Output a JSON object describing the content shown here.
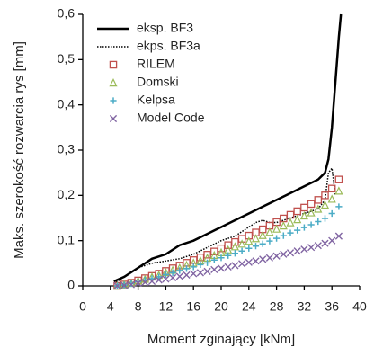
{
  "chart_data": {
    "type": "line",
    "x_label": "Moment zginający [kNm]",
    "y_label": "Maks. szerokość rozwarcia rys [mm]",
    "xlim": [
      0,
      40
    ],
    "xticks": [
      0,
      4,
      8,
      12,
      16,
      20,
      24,
      28,
      32,
      36,
      40
    ],
    "ylim": [
      0,
      0.6
    ],
    "yticks": [
      0,
      {
        "value": 0.1,
        "label": "0,1"
      },
      {
        "value": 0.2,
        "label": "0,2"
      },
      {
        "value": 0.3,
        "label": "0,3"
      },
      {
        "value": 0.4,
        "label": "0,4"
      },
      {
        "value": 0.5,
        "label": "0,5"
      },
      {
        "value": 0.6,
        "label": "0,6"
      }
    ],
    "grid": false,
    "legend": "upper left",
    "series": [
      {
        "name": "eksp. BF3",
        "color": "#000000",
        "style": "solid",
        "x": [
          4.5,
          6,
          8,
          10,
          12,
          14,
          16,
          18,
          20,
          22,
          24,
          26,
          28,
          30,
          32,
          34,
          35,
          35.5,
          36,
          36.5,
          37,
          37.3
        ],
        "values": [
          0.01,
          0.02,
          0.04,
          0.06,
          0.07,
          0.09,
          0.1,
          0.115,
          0.13,
          0.145,
          0.16,
          0.175,
          0.19,
          0.205,
          0.22,
          0.235,
          0.25,
          0.28,
          0.35,
          0.45,
          0.55,
          0.6
        ]
      },
      {
        "name": "ekps. BF3a",
        "color": "#000000",
        "style": "dotted",
        "x": [
          4.5,
          6,
          8,
          10,
          12,
          14,
          16,
          18,
          20,
          22,
          24,
          25,
          26,
          27,
          28,
          30,
          32,
          34,
          35,
          35.5,
          36,
          36.5
        ],
        "values": [
          0.005,
          0.02,
          0.04,
          0.05,
          0.055,
          0.06,
          0.07,
          0.085,
          0.1,
          0.11,
          0.13,
          0.14,
          0.145,
          0.14,
          0.14,
          0.15,
          0.16,
          0.17,
          0.19,
          0.25,
          0.26,
          0.2
        ]
      },
      {
        "name": "RILEM",
        "color": "#c0504d",
        "style": "marker",
        "marker": "square",
        "x": [
          5,
          6,
          7,
          8,
          9,
          10,
          11,
          12,
          13,
          14,
          15,
          16,
          17,
          18,
          19,
          20,
          21,
          22,
          23,
          24,
          25,
          26,
          27,
          28,
          29,
          30,
          31,
          32,
          33,
          34,
          35,
          36,
          37
        ],
        "values": [
          0,
          0.003,
          0.007,
          0.012,
          0.017,
          0.022,
          0.027,
          0.033,
          0.039,
          0.045,
          0.051,
          0.057,
          0.063,
          0.069,
          0.076,
          0.083,
          0.09,
          0.097,
          0.104,
          0.111,
          0.118,
          0.125,
          0.133,
          0.141,
          0.149,
          0.157,
          0.165,
          0.173,
          0.181,
          0.19,
          0.2,
          0.215,
          0.235
        ]
      },
      {
        "name": "Domski",
        "color": "#9bbb59",
        "style": "marker",
        "marker": "triangle",
        "x": [
          5,
          6,
          7,
          8,
          9,
          10,
          11,
          12,
          13,
          14,
          15,
          16,
          17,
          18,
          19,
          20,
          21,
          22,
          23,
          24,
          25,
          26,
          27,
          28,
          29,
          30,
          31,
          32,
          33,
          34,
          35,
          36,
          37
        ],
        "values": [
          0,
          0.003,
          0.006,
          0.011,
          0.015,
          0.02,
          0.024,
          0.03,
          0.035,
          0.04,
          0.046,
          0.051,
          0.056,
          0.062,
          0.068,
          0.074,
          0.08,
          0.087,
          0.093,
          0.099,
          0.105,
          0.112,
          0.119,
          0.126,
          0.133,
          0.14,
          0.147,
          0.155,
          0.162,
          0.17,
          0.179,
          0.192,
          0.21
        ]
      },
      {
        "name": "Kelpsa",
        "color": "#4bacc6",
        "style": "marker",
        "marker": "plus",
        "x": [
          5,
          6,
          7,
          8,
          9,
          10,
          11,
          12,
          13,
          14,
          15,
          16,
          17,
          18,
          19,
          20,
          21,
          22,
          23,
          24,
          25,
          26,
          27,
          28,
          29,
          30,
          31,
          32,
          33,
          34,
          35,
          36,
          37
        ],
        "values": [
          0,
          0.002,
          0.005,
          0.009,
          0.013,
          0.016,
          0.02,
          0.025,
          0.029,
          0.034,
          0.038,
          0.042,
          0.047,
          0.051,
          0.057,
          0.062,
          0.067,
          0.072,
          0.077,
          0.083,
          0.088,
          0.093,
          0.099,
          0.105,
          0.111,
          0.117,
          0.123,
          0.129,
          0.135,
          0.142,
          0.149,
          0.16,
          0.175
        ]
      },
      {
        "name": "Model Code",
        "color": "#8064a2",
        "style": "marker",
        "marker": "cross",
        "x": [
          5,
          6,
          7,
          8,
          9,
          10,
          11,
          12,
          13,
          14,
          15,
          16,
          17,
          18,
          19,
          20,
          21,
          22,
          23,
          24,
          25,
          26,
          27,
          28,
          29,
          30,
          31,
          32,
          33,
          34,
          35,
          36,
          37
        ],
        "values": [
          0,
          0.001,
          0.003,
          0.006,
          0.008,
          0.01,
          0.013,
          0.015,
          0.018,
          0.021,
          0.024,
          0.027,
          0.029,
          0.032,
          0.036,
          0.039,
          0.042,
          0.045,
          0.049,
          0.052,
          0.055,
          0.059,
          0.062,
          0.066,
          0.07,
          0.073,
          0.077,
          0.081,
          0.085,
          0.089,
          0.094,
          0.1,
          0.11
        ]
      }
    ]
  }
}
